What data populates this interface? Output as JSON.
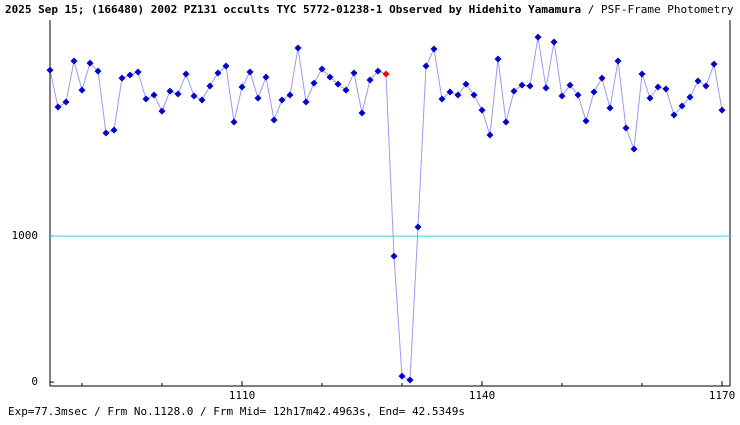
{
  "chart_data": {
    "type": "line",
    "title": "2025 Sep 15; (166480) 2002 PZ131 occults TYC 5772-01238-1 Observed by Hidehito Yamamura",
    "subtitle": "/ PSF-Frame Photometry /",
    "footer": "Exp=77.3msec / Frm No.1128.0 / Frm Mid= 12h17m42.4963s, End= 42.5349s",
    "x": [
      1086,
      1087,
      1088,
      1089,
      1090,
      1091,
      1092,
      1093,
      1094,
      1095,
      1096,
      1097,
      1098,
      1099,
      1100,
      1101,
      1102,
      1103,
      1104,
      1105,
      1106,
      1107,
      1108,
      1109,
      1110,
      1111,
      1112,
      1113,
      1114,
      1115,
      1116,
      1117,
      1118,
      1119,
      1120,
      1121,
      1122,
      1123,
      1124,
      1125,
      1126,
      1127,
      1128,
      1129,
      1130,
      1131,
      1132,
      1133,
      1134,
      1135,
      1136,
      1137,
      1138,
      1139,
      1140,
      1141,
      1142,
      1143,
      1144,
      1145,
      1146,
      1147,
      1148,
      1149,
      1150,
      1151,
      1152,
      1153,
      1154,
      1155,
      1156,
      1157,
      1158,
      1159,
      1160,
      1161,
      1162,
      1163,
      1164,
      1165,
      1166,
      1167,
      1168,
      1169,
      1170
    ],
    "values": [
      2137,
      1884,
      1918,
      2199,
      2000,
      2185,
      2130,
      1706,
      1726,
      2082,
      2103,
      2124,
      1939,
      1966,
      1856,
      1993,
      1973,
      2110,
      1959,
      1932,
      2028,
      2117,
      2165,
      1781,
      2021,
      2124,
      1945,
      2089,
      1795,
      1932,
      1966,
      2288,
      1918,
      2048,
      2144,
      2089,
      2041,
      2000,
      2117,
      1843,
      2069,
      2130,
      2110,
      863,
      41,
      14,
      1062,
      2165,
      2281,
      1939,
      1987,
      1966,
      2041,
      1966,
      1863,
      1692,
      2213,
      1781,
      1993,
      2034,
      2028,
      2363,
      2014,
      2329,
      1959,
      2034,
      1966,
      1788,
      1987,
      2082,
      1877,
      2199,
      1740,
      1596,
      2110,
      1945,
      2021,
      2007,
      1829,
      1891,
      1952,
      2062,
      2028,
      2178,
      1863
    ],
    "line_color": "#9a9af0",
    "marker_color": "#0000cc",
    "highlight_x": 1128,
    "highlight_color": "#ff0000",
    "reference_line": 1000,
    "reference_color": "#33dddd",
    "xlim": [
      1086,
      1171
    ],
    "xticks": [
      1110,
      1140,
      1170
    ],
    "x_minor_ticks": [
      1090,
      1100,
      1120,
      1130,
      1150,
      1160
    ],
    "ylim": [
      -27,
      2480
    ],
    "yticks": [
      0,
      1000
    ]
  }
}
